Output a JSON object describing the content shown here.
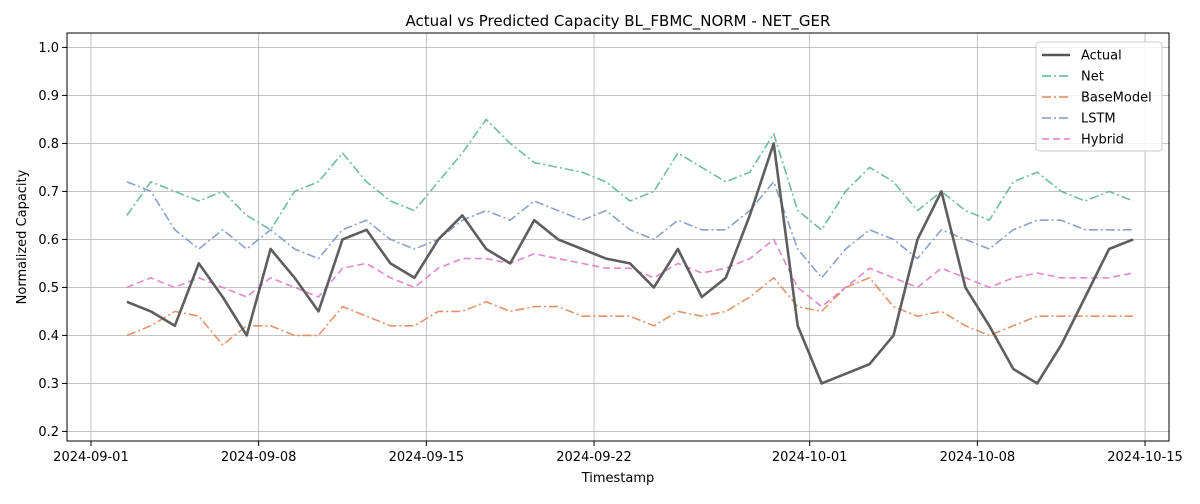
{
  "chart_data": {
    "type": "line",
    "title": "Actual vs Predicted Capacity BL_FBMC_NORM - NET_GER",
    "xlabel": "Timestamp",
    "ylabel": "Normalized Capacity",
    "x_range": [
      "2024-08-31T00:00",
      "2024-10-16T00:00"
    ],
    "x_ticks": [
      "2024-09-01",
      "2024-09-08",
      "2024-09-15",
      "2024-09-22",
      "2024-10-01",
      "2024-10-08",
      "2024-10-15"
    ],
    "ylim": [
      0.18,
      1.03
    ],
    "y_ticks": [
      0.2,
      0.3,
      0.4,
      0.5,
      0.6,
      0.7,
      0.8,
      0.9,
      1.0
    ],
    "grid": true,
    "legend_position": "top-right",
    "sampling": "daily average (approximate, read from plot)",
    "x": [
      "2024-09-02",
      "2024-09-03",
      "2024-09-04",
      "2024-09-05",
      "2024-09-06",
      "2024-09-07",
      "2024-09-08",
      "2024-09-09",
      "2024-09-10",
      "2024-09-11",
      "2024-09-12",
      "2024-09-13",
      "2024-09-14",
      "2024-09-15",
      "2024-09-16",
      "2024-09-17",
      "2024-09-18",
      "2024-09-19",
      "2024-09-20",
      "2024-09-21",
      "2024-09-22",
      "2024-09-23",
      "2024-09-24",
      "2024-09-25",
      "2024-09-26",
      "2024-09-27",
      "2024-09-28",
      "2024-09-29",
      "2024-09-30",
      "2024-10-01",
      "2024-10-02",
      "2024-10-03",
      "2024-10-04",
      "2024-10-05",
      "2024-10-06",
      "2024-10-07",
      "2024-10-08",
      "2024-10-09",
      "2024-10-10",
      "2024-10-11",
      "2024-10-12",
      "2024-10-13",
      "2024-10-14"
    ],
    "series": [
      {
        "name": "Actual",
        "color": "#555555",
        "style": "solid",
        "values": [
          0.47,
          0.45,
          0.42,
          0.55,
          0.48,
          0.4,
          0.58,
          0.52,
          0.45,
          0.6,
          0.62,
          0.55,
          0.52,
          0.6,
          0.65,
          0.58,
          0.55,
          0.64,
          0.6,
          0.58,
          0.56,
          0.55,
          0.5,
          0.58,
          0.48,
          0.52,
          0.65,
          0.8,
          0.42,
          0.3,
          0.32,
          0.34,
          0.4,
          0.6,
          0.7,
          0.5,
          0.42,
          0.33,
          0.3,
          0.38,
          0.48,
          0.58,
          0.6
        ]
      },
      {
        "name": "Net",
        "color": "#5fb49c",
        "style": "dashdot",
        "values": [
          0.65,
          0.72,
          0.7,
          0.68,
          0.7,
          0.65,
          0.62,
          0.7,
          0.72,
          0.78,
          0.72,
          0.68,
          0.66,
          0.72,
          0.78,
          0.85,
          0.8,
          0.76,
          0.75,
          0.74,
          0.72,
          0.68,
          0.7,
          0.78,
          0.75,
          0.72,
          0.74,
          0.82,
          0.66,
          0.62,
          0.7,
          0.75,
          0.72,
          0.66,
          0.7,
          0.66,
          0.64,
          0.72,
          0.74,
          0.7,
          0.68,
          0.7,
          0.68
        ]
      },
      {
        "name": "BaseModel",
        "color": "#e0875a",
        "style": "dashdot",
        "values": [
          0.4,
          0.42,
          0.45,
          0.44,
          0.38,
          0.42,
          0.42,
          0.4,
          0.4,
          0.46,
          0.44,
          0.42,
          0.42,
          0.45,
          0.45,
          0.47,
          0.45,
          0.46,
          0.46,
          0.44,
          0.44,
          0.44,
          0.42,
          0.45,
          0.44,
          0.45,
          0.48,
          0.52,
          0.46,
          0.45,
          0.5,
          0.52,
          0.46,
          0.44,
          0.45,
          0.42,
          0.4,
          0.42,
          0.44,
          0.44,
          0.44,
          0.44,
          0.44
        ]
      },
      {
        "name": "LSTM",
        "color": "#7f96c6",
        "style": "dashdot",
        "values": [
          0.72,
          0.7,
          0.62,
          0.58,
          0.62,
          0.58,
          0.62,
          0.58,
          0.56,
          0.62,
          0.64,
          0.6,
          0.58,
          0.6,
          0.64,
          0.66,
          0.64,
          0.68,
          0.66,
          0.64,
          0.66,
          0.62,
          0.6,
          0.64,
          0.62,
          0.62,
          0.66,
          0.72,
          0.58,
          0.52,
          0.58,
          0.62,
          0.6,
          0.56,
          0.62,
          0.6,
          0.58,
          0.62,
          0.64,
          0.64,
          0.62,
          0.62,
          0.62
        ]
      },
      {
        "name": "Hybrid",
        "color": "#e07ac6",
        "style": "dashed",
        "values": [
          0.5,
          0.52,
          0.5,
          0.52,
          0.5,
          0.48,
          0.52,
          0.5,
          0.48,
          0.54,
          0.55,
          0.52,
          0.5,
          0.54,
          0.56,
          0.56,
          0.55,
          0.57,
          0.56,
          0.55,
          0.54,
          0.54,
          0.52,
          0.55,
          0.53,
          0.54,
          0.56,
          0.6,
          0.5,
          0.46,
          0.5,
          0.54,
          0.52,
          0.5,
          0.54,
          0.52,
          0.5,
          0.52,
          0.53,
          0.52,
          0.52,
          0.52,
          0.53
        ]
      }
    ]
  }
}
